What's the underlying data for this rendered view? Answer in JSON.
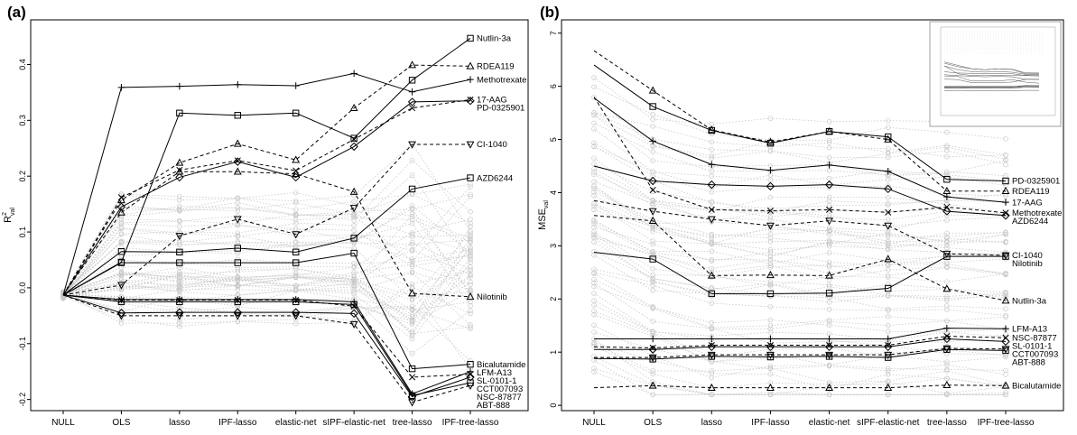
{
  "chart_data": [
    {
      "type": "line",
      "panel": "(a)",
      "ylabel_main": "R",
      "ylabel_sup": "2",
      "ylabel_sub": "val",
      "ylim": [
        -0.22,
        0.48
      ],
      "yticks": [
        -0.2,
        -0.1,
        0.0,
        0.1,
        0.2,
        0.3,
        0.4
      ],
      "categories": [
        "NULL",
        "OLS",
        "lasso",
        "IPF-lasso",
        "elastic-net",
        "sIPF-elastic-net",
        "tree-lasso",
        "IPF-tree-lasso"
      ],
      "series": [
        {
          "name": "Nutlin-3a",
          "marker": "square",
          "dash": false,
          "values": [
            -0.013,
            0.046,
            0.313,
            0.309,
            0.313,
            0.268,
            0.372,
            0.447
          ]
        },
        {
          "name": "RDEA119",
          "marker": "triangle",
          "dash": true,
          "values": [
            -0.013,
            0.157,
            0.224,
            0.258,
            0.229,
            0.322,
            0.399,
            0.397
          ]
        },
        {
          "name": "Methotrexate",
          "marker": "plus",
          "dash": false,
          "values": [
            -0.013,
            0.359,
            0.361,
            0.364,
            0.362,
            0.384,
            0.351,
            0.373
          ]
        },
        {
          "name": "17-AAG",
          "marker": "x",
          "dash": true,
          "values": [
            -0.013,
            0.162,
            0.211,
            0.228,
            0.21,
            0.266,
            0.322,
            0.337
          ]
        },
        {
          "name": "PD-0325901",
          "marker": "diamond",
          "dash": false,
          "values": [
            -0.013,
            0.145,
            0.198,
            0.226,
            0.198,
            0.253,
            0.333,
            0.335
          ]
        },
        {
          "name": "CI-1040",
          "marker": "triangle-down",
          "dash": true,
          "values": [
            -0.013,
            0.005,
            0.093,
            0.123,
            0.096,
            0.143,
            0.257,
            0.257
          ]
        },
        {
          "name": "AZD6244",
          "marker": "square",
          "dash": false,
          "values": [
            -0.013,
            0.065,
            0.064,
            0.071,
            0.064,
            0.089,
            0.177,
            0.197
          ]
        },
        {
          "name": "Nilotinib",
          "marker": "triangle",
          "dash": true,
          "values": [
            -0.013,
            0.135,
            0.208,
            0.208,
            0.204,
            0.172,
            -0.01,
            -0.016
          ]
        },
        {
          "name": "Bicalutamide",
          "marker": "square",
          "dash": false,
          "values": [
            -0.013,
            0.045,
            0.045,
            0.045,
            0.045,
            0.062,
            -0.145,
            -0.137
          ]
        },
        {
          "name": "LFM-A13",
          "marker": "plus",
          "dash": false,
          "values": [
            -0.013,
            -0.021,
            -0.021,
            -0.021,
            -0.021,
            -0.025,
            -0.19,
            -0.15
          ]
        },
        {
          "name": "SL-0101-1",
          "marker": "x",
          "dash": true,
          "values": [
            -0.013,
            -0.022,
            -0.022,
            -0.022,
            -0.022,
            -0.033,
            -0.16,
            -0.155
          ]
        },
        {
          "name": "CCT007093",
          "marker": "diamond",
          "dash": false,
          "values": [
            -0.013,
            -0.045,
            -0.044,
            -0.044,
            -0.044,
            -0.046,
            -0.195,
            -0.16
          ]
        },
        {
          "name": "NSC-87877",
          "marker": "square",
          "dash": false,
          "values": [
            -0.013,
            -0.025,
            -0.025,
            -0.025,
            -0.025,
            -0.03,
            -0.193,
            -0.17
          ]
        },
        {
          "name": "ABT-888",
          "marker": "triangle-down",
          "dash": true,
          "values": [
            -0.013,
            -0.05,
            -0.05,
            -0.05,
            -0.05,
            -0.065,
            -0.205,
            -0.175
          ]
        }
      ]
    },
    {
      "type": "line",
      "panel": "(b)",
      "ylabel_main": "MSE",
      "ylabel_sub": "val",
      "ylim": [
        -0.1,
        7.25
      ],
      "yticks": [
        0,
        1,
        2,
        3,
        4,
        5,
        6,
        7
      ],
      "categories": [
        "NULL",
        "OLS",
        "lasso",
        "IPF-lasso",
        "elastic-net",
        "sIPF-elastic-net",
        "tree-lasso",
        "IPF-tree-lasso"
      ],
      "series": [
        {
          "name": "PD-0325901",
          "marker": "square",
          "dash": false,
          "values": [
            6.4,
            5.62,
            5.17,
            4.93,
            5.15,
            5.05,
            4.25,
            4.22
          ]
        },
        {
          "name": "RDEA119",
          "marker": "triangle",
          "dash": true,
          "values": [
            6.67,
            5.92,
            5.18,
            4.95,
            5.15,
            5.0,
            4.03,
            4.03
          ]
        },
        {
          "name": "17-AAG",
          "marker": "plus",
          "dash": false,
          "values": [
            5.78,
            4.97,
            4.53,
            4.42,
            4.52,
            4.4,
            3.92,
            3.82
          ]
        },
        {
          "name": "Methotrexate",
          "marker": "x",
          "dash": true,
          "values": [
            5.8,
            4.05,
            3.68,
            3.66,
            3.68,
            3.63,
            3.73,
            3.62
          ]
        },
        {
          "name": "AZD6244",
          "marker": "diamond",
          "dash": false,
          "values": [
            4.5,
            4.22,
            4.15,
            4.12,
            4.15,
            4.07,
            3.65,
            3.57
          ]
        },
        {
          "name": "CI-1040",
          "marker": "triangle-down",
          "dash": true,
          "values": [
            3.85,
            3.65,
            3.5,
            3.38,
            3.47,
            3.38,
            2.85,
            2.82
          ]
        },
        {
          "name": "Nilotinib",
          "marker": "square",
          "dash": false,
          "values": [
            2.88,
            2.75,
            2.1,
            2.1,
            2.11,
            2.2,
            2.8,
            2.8
          ]
        },
        {
          "name": "Nutlin-3a",
          "marker": "triangle",
          "dash": true,
          "values": [
            3.57,
            3.47,
            2.44,
            2.45,
            2.44,
            2.75,
            2.19,
            1.97
          ]
        },
        {
          "name": "LFM-A13",
          "marker": "plus",
          "dash": false,
          "values": [
            1.25,
            1.25,
            1.25,
            1.25,
            1.25,
            1.25,
            1.45,
            1.44
          ]
        },
        {
          "name": "NSC-87877",
          "marker": "x",
          "dash": true,
          "values": [
            1.1,
            1.08,
            1.13,
            1.13,
            1.13,
            1.13,
            1.3,
            1.27
          ]
        },
        {
          "name": "SL-0101-1",
          "marker": "diamond",
          "dash": false,
          "values": [
            1.05,
            1.05,
            1.1,
            1.1,
            1.1,
            1.1,
            1.25,
            1.2
          ]
        },
        {
          "name": "CCT007093",
          "marker": "triangle-down",
          "dash": true,
          "values": [
            0.9,
            0.9,
            0.95,
            0.95,
            0.95,
            0.95,
            1.07,
            1.06
          ]
        },
        {
          "name": "ABT-888",
          "marker": "square",
          "dash": false,
          "values": [
            0.88,
            0.87,
            0.92,
            0.91,
            0.92,
            0.9,
            1.05,
            1.03
          ]
        },
        {
          "name": "Bicalutamide",
          "marker": "triangle",
          "dash": true,
          "values": [
            0.33,
            0.37,
            0.33,
            0.33,
            0.33,
            0.33,
            0.38,
            0.37
          ]
        }
      ]
    }
  ]
}
